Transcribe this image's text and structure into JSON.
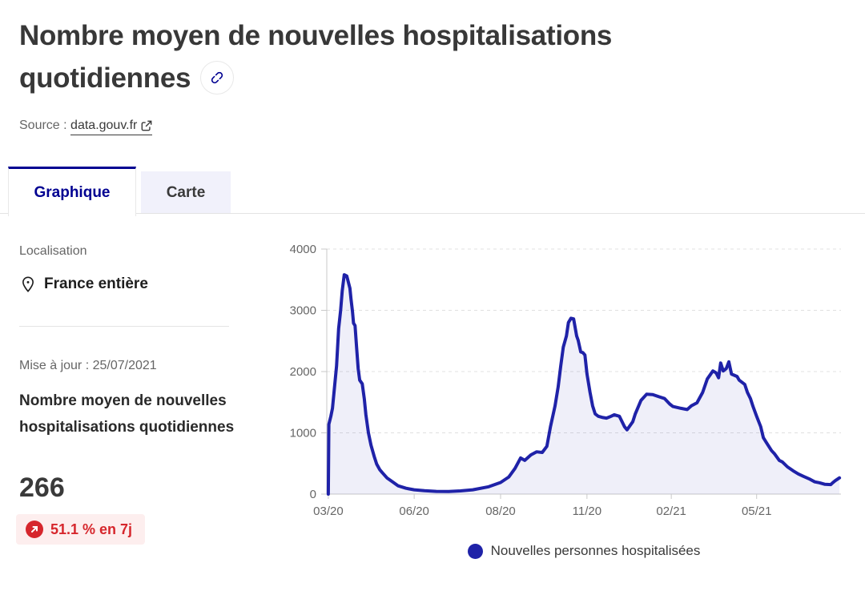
{
  "page": {
    "title": "Nombre moyen de nouvelles hospitalisations quotidiennes",
    "source_label": "Source :",
    "source_link": "data.gouv.fr"
  },
  "tabs": [
    {
      "label": "Graphique",
      "active": true
    },
    {
      "label": "Carte",
      "active": false
    }
  ],
  "sidebar": {
    "location_label": "Localisation",
    "location_value": "France entière",
    "updated": "Mise à jour : 25/07/2021",
    "metric_title": "Nombre moyen de nouvelles hospitalisations quotidiennes",
    "metric_value": "266",
    "trend_badge": "51.1 % en 7j"
  },
  "legend": {
    "label": "Nouvelles personnes hospitalisées"
  },
  "colors": {
    "accent_blue": "#000091",
    "series_blue": "#1f22a8",
    "series_fill": "rgba(31,34,168,0.07)",
    "alert_red": "#d6262c",
    "badge_bg": "#fdeeee",
    "text_dark": "#3a3a3a",
    "text_gray": "#666666",
    "grid": "#e0e0e0",
    "axis": "#c9c9c9"
  },
  "chart_data": {
    "type": "area",
    "title": "Nombre moyen de nouvelles hospitalisations quotidiennes",
    "xlabel": "",
    "ylabel": "",
    "ylim": [
      0,
      4000
    ],
    "yticks": [
      0,
      1000,
      2000,
      3000,
      4000
    ],
    "grid": "dashed-horizontal",
    "legend_position": "bottom-center",
    "xticks": [
      {
        "label": "03/20",
        "pos": 0.3
      },
      {
        "label": "06/20",
        "pos": 17.0
      },
      {
        "label": "08/20",
        "pos": 33.8
      },
      {
        "label": "11/20",
        "pos": 50.6
      },
      {
        "label": "02/21",
        "pos": 67.0
      },
      {
        "label": "05/21",
        "pos": 83.6
      }
    ],
    "series": [
      {
        "name": "Nouvelles personnes hospitalisées",
        "points": [
          [
            0.3,
            0
          ],
          [
            0.4,
            1140
          ],
          [
            0.8,
            1270
          ],
          [
            1.1,
            1400
          ],
          [
            1.9,
            2090
          ],
          [
            2.3,
            2700
          ],
          [
            2.7,
            3000
          ],
          [
            3.0,
            3320
          ],
          [
            3.4,
            3580
          ],
          [
            3.9,
            3560
          ],
          [
            4.5,
            3360
          ],
          [
            4.7,
            3190
          ],
          [
            5.0,
            2980
          ],
          [
            5.2,
            2790
          ],
          [
            5.5,
            2750
          ],
          [
            5.8,
            2400
          ],
          [
            6.1,
            2050
          ],
          [
            6.4,
            1860
          ],
          [
            6.9,
            1800
          ],
          [
            7.3,
            1550
          ],
          [
            7.6,
            1300
          ],
          [
            8.1,
            1000
          ],
          [
            8.6,
            800
          ],
          [
            9.2,
            620
          ],
          [
            9.7,
            490
          ],
          [
            10.3,
            400
          ],
          [
            10.8,
            350
          ],
          [
            11.7,
            265
          ],
          [
            12.8,
            200
          ],
          [
            13.9,
            135
          ],
          [
            15.4,
            95
          ],
          [
            17.0,
            70
          ],
          [
            19.0,
            55
          ],
          [
            21.3,
            45
          ],
          [
            23.7,
            42
          ],
          [
            26.0,
            52
          ],
          [
            28.4,
            70
          ],
          [
            31.5,
            120
          ],
          [
            33.8,
            190
          ],
          [
            35.4,
            280
          ],
          [
            36.6,
            420
          ],
          [
            37.7,
            590
          ],
          [
            38.5,
            550
          ],
          [
            39.7,
            640
          ],
          [
            40.8,
            690
          ],
          [
            41.9,
            680
          ],
          [
            42.8,
            780
          ],
          [
            43.5,
            1100
          ],
          [
            44.4,
            1440
          ],
          [
            45.0,
            1750
          ],
          [
            45.5,
            2090
          ],
          [
            46.0,
            2400
          ],
          [
            46.6,
            2580
          ],
          [
            47.0,
            2800
          ],
          [
            47.5,
            2870
          ],
          [
            48.0,
            2860
          ],
          [
            48.6,
            2580
          ],
          [
            48.9,
            2510
          ],
          [
            49.4,
            2320
          ],
          [
            49.8,
            2310
          ],
          [
            50.2,
            2270
          ],
          [
            50.6,
            1960
          ],
          [
            51.2,
            1660
          ],
          [
            51.7,
            1440
          ],
          [
            52.2,
            1310
          ],
          [
            52.8,
            1270
          ],
          [
            53.7,
            1250
          ],
          [
            54.4,
            1240
          ],
          [
            55.3,
            1270
          ],
          [
            55.9,
            1295
          ],
          [
            56.9,
            1270
          ],
          [
            57.9,
            1100
          ],
          [
            58.4,
            1050
          ],
          [
            59.5,
            1180
          ],
          [
            60.0,
            1310
          ],
          [
            61.1,
            1530
          ],
          [
            62.2,
            1630
          ],
          [
            63.4,
            1625
          ],
          [
            64.6,
            1590
          ],
          [
            65.7,
            1560
          ],
          [
            66.7,
            1470
          ],
          [
            67.3,
            1430
          ],
          [
            68.9,
            1400
          ],
          [
            70.1,
            1380
          ],
          [
            70.9,
            1440
          ],
          [
            72.0,
            1490
          ],
          [
            73.1,
            1660
          ],
          [
            74.0,
            1880
          ],
          [
            75.1,
            2010
          ],
          [
            75.7,
            1980
          ],
          [
            76.2,
            1900
          ],
          [
            76.6,
            2140
          ],
          [
            77.1,
            2010
          ],
          [
            77.7,
            2050
          ],
          [
            78.2,
            2160
          ],
          [
            78.7,
            1960
          ],
          [
            79.8,
            1920
          ],
          [
            80.2,
            1860
          ],
          [
            81.3,
            1790
          ],
          [
            81.8,
            1660
          ],
          [
            82.4,
            1560
          ],
          [
            82.9,
            1430
          ],
          [
            83.6,
            1270
          ],
          [
            84.4,
            1100
          ],
          [
            84.9,
            920
          ],
          [
            85.5,
            840
          ],
          [
            86.5,
            710
          ],
          [
            87.1,
            655
          ],
          [
            88.0,
            550
          ],
          [
            88.6,
            525
          ],
          [
            89.6,
            445
          ],
          [
            90.7,
            380
          ],
          [
            91.7,
            330
          ],
          [
            92.7,
            290
          ],
          [
            93.8,
            250
          ],
          [
            94.9,
            200
          ],
          [
            95.8,
            185
          ],
          [
            96.9,
            160
          ],
          [
            98.0,
            155
          ],
          [
            98.4,
            185
          ],
          [
            98.9,
            220
          ],
          [
            99.7,
            266
          ]
        ]
      }
    ]
  }
}
